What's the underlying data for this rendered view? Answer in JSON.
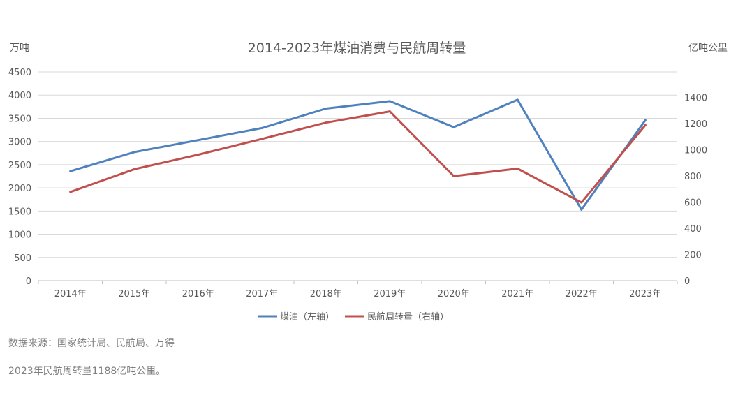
{
  "chart_data": {
    "type": "line",
    "title": "2014-2023年煤油消费与民航周转量",
    "y_left_label": "万吨",
    "y_right_label": "亿吨公里",
    "categories": [
      "2014年",
      "2015年",
      "2016年",
      "2017年",
      "2018年",
      "2019年",
      "2020年",
      "2021年",
      "2022年",
      "2023年"
    ],
    "y_left": {
      "min": 0,
      "max": 4500,
      "ticks": [
        "0",
        "500",
        "1000",
        "1500",
        "2000",
        "2500",
        "3000",
        "3500",
        "4000",
        "4500"
      ]
    },
    "y_right": {
      "min": 0,
      "max": 1600,
      "ticks": [
        "0",
        "200",
        "400",
        "600",
        "800",
        "1000",
        "1200",
        "1400"
      ]
    },
    "series": [
      {
        "name": "煤油（左轴）",
        "axis": "left",
        "color": "#4f81bd",
        "values": [
          2360,
          2770,
          3030,
          3290,
          3710,
          3870,
          3310,
          3900,
          1530,
          3460
        ]
      },
      {
        "name": "民航周转量（右轴）",
        "axis": "right",
        "color": "#c0504d",
        "values": [
          678,
          851,
          962,
          1083,
          1207,
          1293,
          799,
          856,
          597,
          1188
        ]
      }
    ],
    "grid": true,
    "legend": "bottom"
  },
  "footer": {
    "source": "数据来源：国家统计局、民航局、万得",
    "note": "2023年民航周转量1188亿吨公里。"
  }
}
